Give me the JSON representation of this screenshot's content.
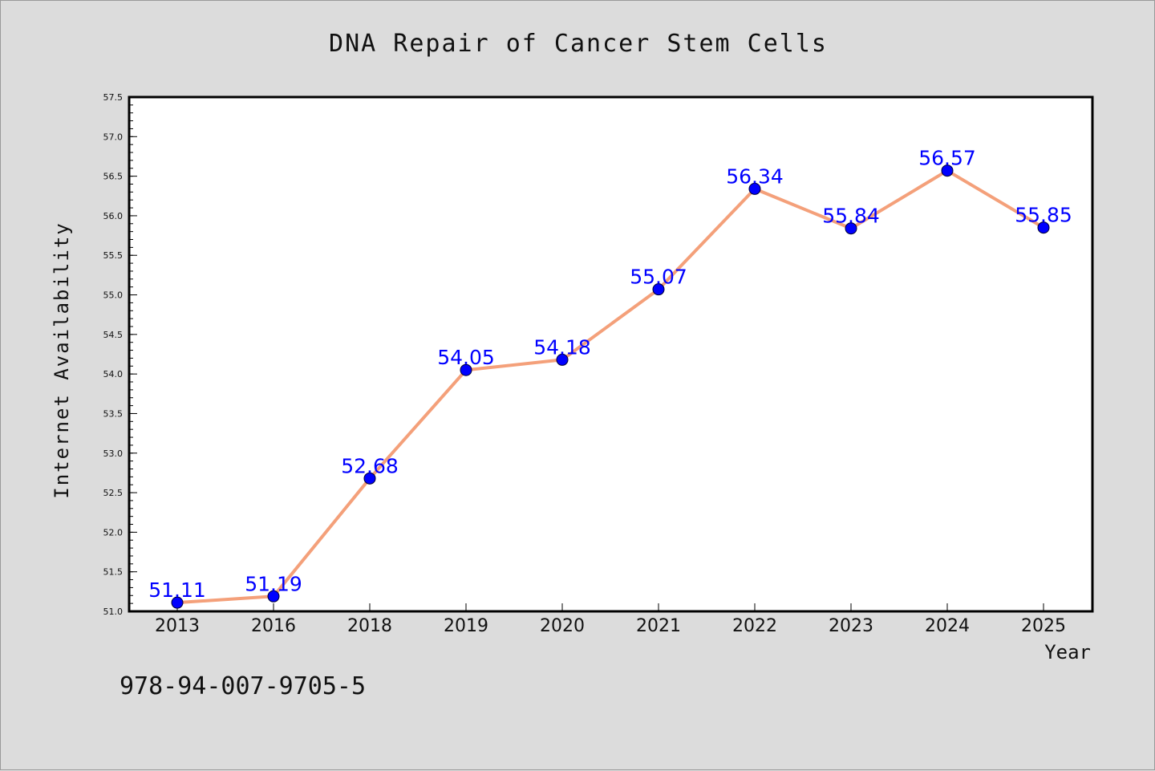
{
  "footer_code": "978-94-007-9705-5",
  "colors": {
    "line": "#f4a07a",
    "marker": "#0000ff",
    "label": "#0000ff",
    "background": "#dcdcdc",
    "plot_bg": "#ffffff"
  },
  "chart_data": {
    "type": "line",
    "title": "DNA Repair of Cancer Stem Cells",
    "xlabel": "Year",
    "ylabel": "Internet Availability",
    "categories": [
      "2013",
      "2016",
      "2018",
      "2019",
      "2020",
      "2021",
      "2022",
      "2023",
      "2024",
      "2025"
    ],
    "series": [
      {
        "values": [
          51.11,
          51.19,
          52.68,
          54.05,
          54.18,
          55.07,
          56.34,
          55.84,
          56.57,
          55.85
        ]
      }
    ],
    "data_labels": [
      "51.11",
      "51.19",
      "52.68",
      "54.05",
      "54.18",
      "55.07",
      "56.34",
      "55.84",
      "56.57",
      "55.85"
    ],
    "yticks": [
      "51.0",
      "51.5",
      "52.0",
      "52.5",
      "53.0",
      "53.5",
      "54.0",
      "54.5",
      "55.0",
      "55.5",
      "56.0",
      "56.5",
      "57.0",
      "57.5"
    ],
    "ylim": [
      51.0,
      57.5
    ],
    "grid": false,
    "legend": "none"
  }
}
